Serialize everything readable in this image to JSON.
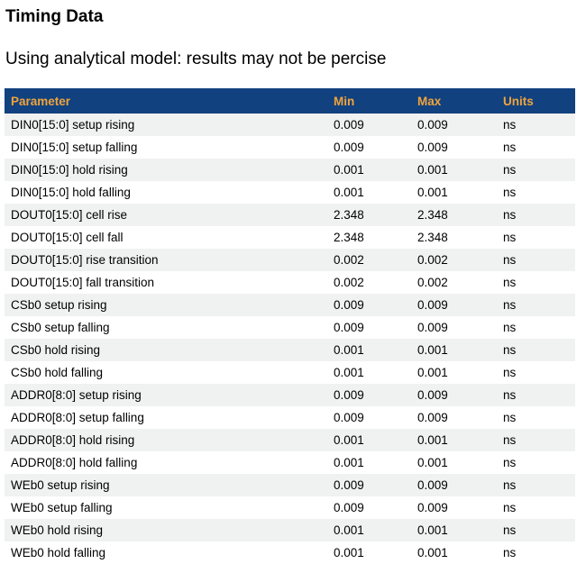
{
  "page": {
    "title": "Timing Data",
    "subtitle": "Using analytical model: results may not be percise"
  },
  "colors": {
    "header_bg": "#11417E",
    "header_fg": "#F0A43C",
    "stripe_bg": "#F0F1F1",
    "body_text": "#000000"
  },
  "table": {
    "columns": [
      "Parameter",
      "Min",
      "Max",
      "Units"
    ],
    "rows": [
      {
        "parameter": "DIN0[15:0] setup rising",
        "min": "0.009",
        "max": "0.009",
        "units": "ns"
      },
      {
        "parameter": "DIN0[15:0] setup falling",
        "min": "0.009",
        "max": "0.009",
        "units": "ns"
      },
      {
        "parameter": "DIN0[15:0] hold rising",
        "min": "0.001",
        "max": "0.001",
        "units": "ns"
      },
      {
        "parameter": "DIN0[15:0] hold falling",
        "min": "0.001",
        "max": "0.001",
        "units": "ns"
      },
      {
        "parameter": "DOUT0[15:0] cell rise",
        "min": "2.348",
        "max": "2.348",
        "units": "ns"
      },
      {
        "parameter": "DOUT0[15:0] cell fall",
        "min": "2.348",
        "max": "2.348",
        "units": "ns"
      },
      {
        "parameter": "DOUT0[15:0] rise transition",
        "min": "0.002",
        "max": "0.002",
        "units": "ns"
      },
      {
        "parameter": "DOUT0[15:0] fall transition",
        "min": "0.002",
        "max": "0.002",
        "units": "ns"
      },
      {
        "parameter": "CSb0 setup rising",
        "min": "0.009",
        "max": "0.009",
        "units": "ns"
      },
      {
        "parameter": "CSb0 setup falling",
        "min": "0.009",
        "max": "0.009",
        "units": "ns"
      },
      {
        "parameter": "CSb0 hold rising",
        "min": "0.001",
        "max": "0.001",
        "units": "ns"
      },
      {
        "parameter": "CSb0 hold falling",
        "min": "0.001",
        "max": "0.001",
        "units": "ns"
      },
      {
        "parameter": "ADDR0[8:0] setup rising",
        "min": "0.009",
        "max": "0.009",
        "units": "ns"
      },
      {
        "parameter": "ADDR0[8:0] setup falling",
        "min": "0.009",
        "max": "0.009",
        "units": "ns"
      },
      {
        "parameter": "ADDR0[8:0] hold rising",
        "min": "0.001",
        "max": "0.001",
        "units": "ns"
      },
      {
        "parameter": "ADDR0[8:0] hold falling",
        "min": "0.001",
        "max": "0.001",
        "units": "ns"
      },
      {
        "parameter": "WEb0 setup rising",
        "min": "0.009",
        "max": "0.009",
        "units": "ns"
      },
      {
        "parameter": "WEb0 setup falling",
        "min": "0.009",
        "max": "0.009",
        "units": "ns"
      },
      {
        "parameter": "WEb0 hold rising",
        "min": "0.001",
        "max": "0.001",
        "units": "ns"
      },
      {
        "parameter": "WEb0 hold falling",
        "min": "0.001",
        "max": "0.001",
        "units": "ns"
      }
    ]
  }
}
